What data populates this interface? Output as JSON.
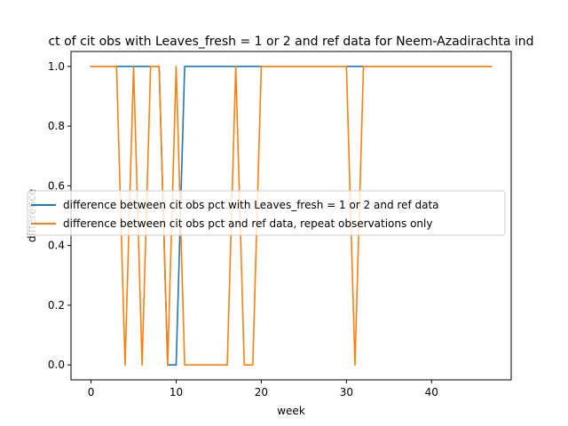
{
  "chart_data": {
    "type": "line",
    "title": "ct of cit obs with Leaves_fresh = 1 or 2 and ref data for Neem-Azadirachta ind",
    "xlabel": "week",
    "ylabel": "difference",
    "xlim": [
      -2.35,
      49.35
    ],
    "ylim": [
      -0.05,
      1.05
    ],
    "xticks": [
      0,
      10,
      20,
      30,
      40
    ],
    "yticks": [
      0.0,
      0.2,
      0.4,
      0.6,
      0.8,
      1.0
    ],
    "xtick_labels": [
      "0",
      "10",
      "20",
      "30",
      "40"
    ],
    "ytick_labels": [
      "0.0",
      "0.2",
      "0.4",
      "0.6",
      "0.8",
      "1.0"
    ],
    "grid": false,
    "legend_placement": "center right",
    "series": [
      {
        "name": "difference between cit obs pct with Leaves_fresh = 1 or 2 and ref data",
        "color": "#1f77b4",
        "x": [
          0,
          1,
          2,
          3,
          4,
          5,
          6,
          7,
          8,
          9,
          10,
          11,
          12,
          13,
          14,
          15,
          16,
          17,
          18,
          19,
          20,
          21,
          22,
          23,
          24,
          25,
          26,
          27,
          28,
          29,
          30,
          31,
          32,
          33,
          34,
          35,
          36,
          37,
          38,
          39,
          40,
          41,
          42,
          43,
          44,
          45,
          46,
          47
        ],
        "values": [
          1,
          1,
          1,
          1,
          1,
          1,
          1,
          1,
          1,
          0,
          0,
          1,
          1,
          1,
          1,
          1,
          1,
          1,
          1,
          1,
          1,
          1,
          1,
          1,
          1,
          1,
          1,
          1,
          1,
          1,
          1,
          1,
          1,
          1,
          1,
          1,
          1,
          1,
          1,
          1,
          1,
          1,
          1,
          1,
          1,
          1,
          1,
          1
        ]
      },
      {
        "name": "difference between cit obs pct and ref data, repeat observations only",
        "color": "#ff7f0e",
        "x": [
          0,
          1,
          2,
          3,
          4,
          5,
          6,
          7,
          8,
          9,
          10,
          11,
          12,
          13,
          14,
          15,
          16,
          17,
          18,
          19,
          20,
          21,
          22,
          23,
          24,
          25,
          26,
          27,
          28,
          29,
          30,
          31,
          32,
          33,
          34,
          35,
          36,
          37,
          38,
          39,
          40,
          41,
          42,
          43,
          44,
          45,
          46,
          47
        ],
        "values": [
          1,
          1,
          1,
          1,
          0,
          1,
          0,
          1,
          1,
          0,
          1,
          0,
          0,
          0,
          0,
          0,
          0,
          1,
          0,
          0,
          1,
          1,
          1,
          1,
          1,
          1,
          1,
          1,
          1,
          1,
          1,
          0,
          1,
          1,
          1,
          1,
          1,
          1,
          1,
          1,
          1,
          1,
          1,
          1,
          1,
          1,
          1,
          1
        ]
      }
    ]
  }
}
